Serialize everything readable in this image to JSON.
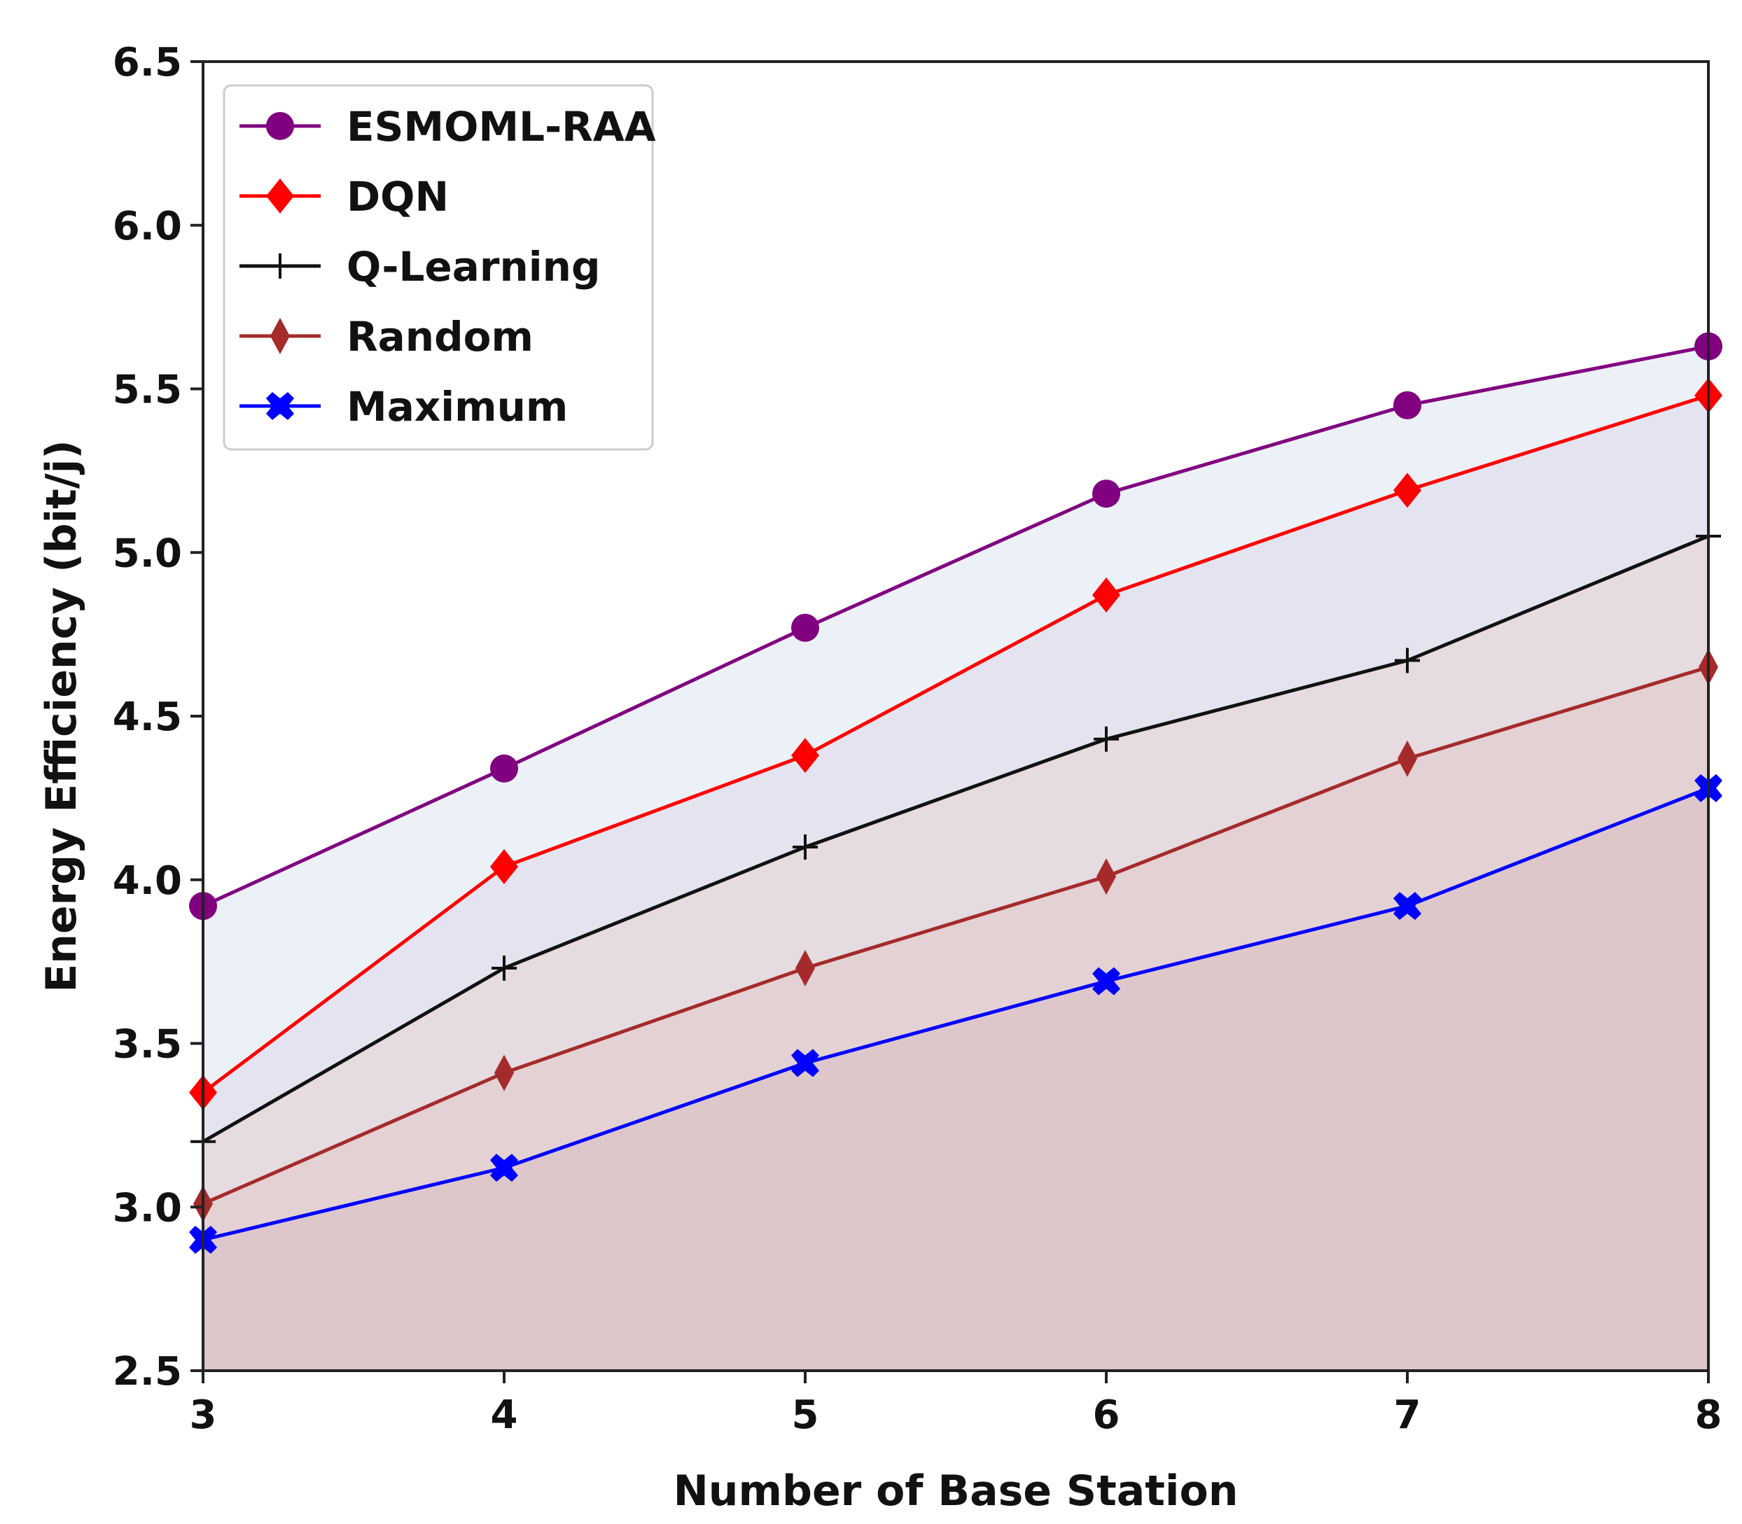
{
  "chart_data": {
    "type": "line",
    "title": "",
    "xlabel": "Number of Base Station",
    "ylabel": "Energy Efficiency (bit/j)",
    "x": [
      3,
      4,
      5,
      6,
      7,
      8
    ],
    "xticks": [
      "3",
      "4",
      "5",
      "6",
      "7",
      "8"
    ],
    "xlim": [
      3,
      8
    ],
    "ylim": [
      2.5,
      6.5
    ],
    "yticks": [
      "2.5",
      "3.0",
      "3.5",
      "4.0",
      "4.5",
      "5.0",
      "5.5",
      "6.0",
      "6.5"
    ],
    "grid": false,
    "legend_position": "top-left",
    "series": [
      {
        "name": "ESMOML-RAA",
        "values": [
          3.92,
          4.34,
          4.77,
          5.18,
          5.45,
          5.63
        ],
        "color": "#800080",
        "marker": "circle",
        "fill": "#dce6f0"
      },
      {
        "name": "DQN",
        "values": [
          3.35,
          4.04,
          4.38,
          4.87,
          5.19,
          5.48
        ],
        "color": "#ff0000",
        "marker": "diamond",
        "fill": "#ddd8ea"
      },
      {
        "name": "Q-Learning",
        "values": [
          3.2,
          3.73,
          4.1,
          4.43,
          4.67,
          5.05
        ],
        "color": "#111111",
        "marker": "plus",
        "fill": "#e8d4d6"
      },
      {
        "name": "Random",
        "values": [
          3.01,
          3.41,
          3.73,
          4.01,
          4.37,
          4.65
        ],
        "color": "#a52a2a",
        "marker": "thin-diamond",
        "fill": "#e2c8cb"
      },
      {
        "name": "Maximum",
        "values": [
          2.9,
          3.12,
          3.44,
          3.69,
          3.92,
          4.28
        ],
        "color": "#0000ff",
        "marker": "x-filled",
        "fill": "#dbbfc3"
      }
    ]
  }
}
